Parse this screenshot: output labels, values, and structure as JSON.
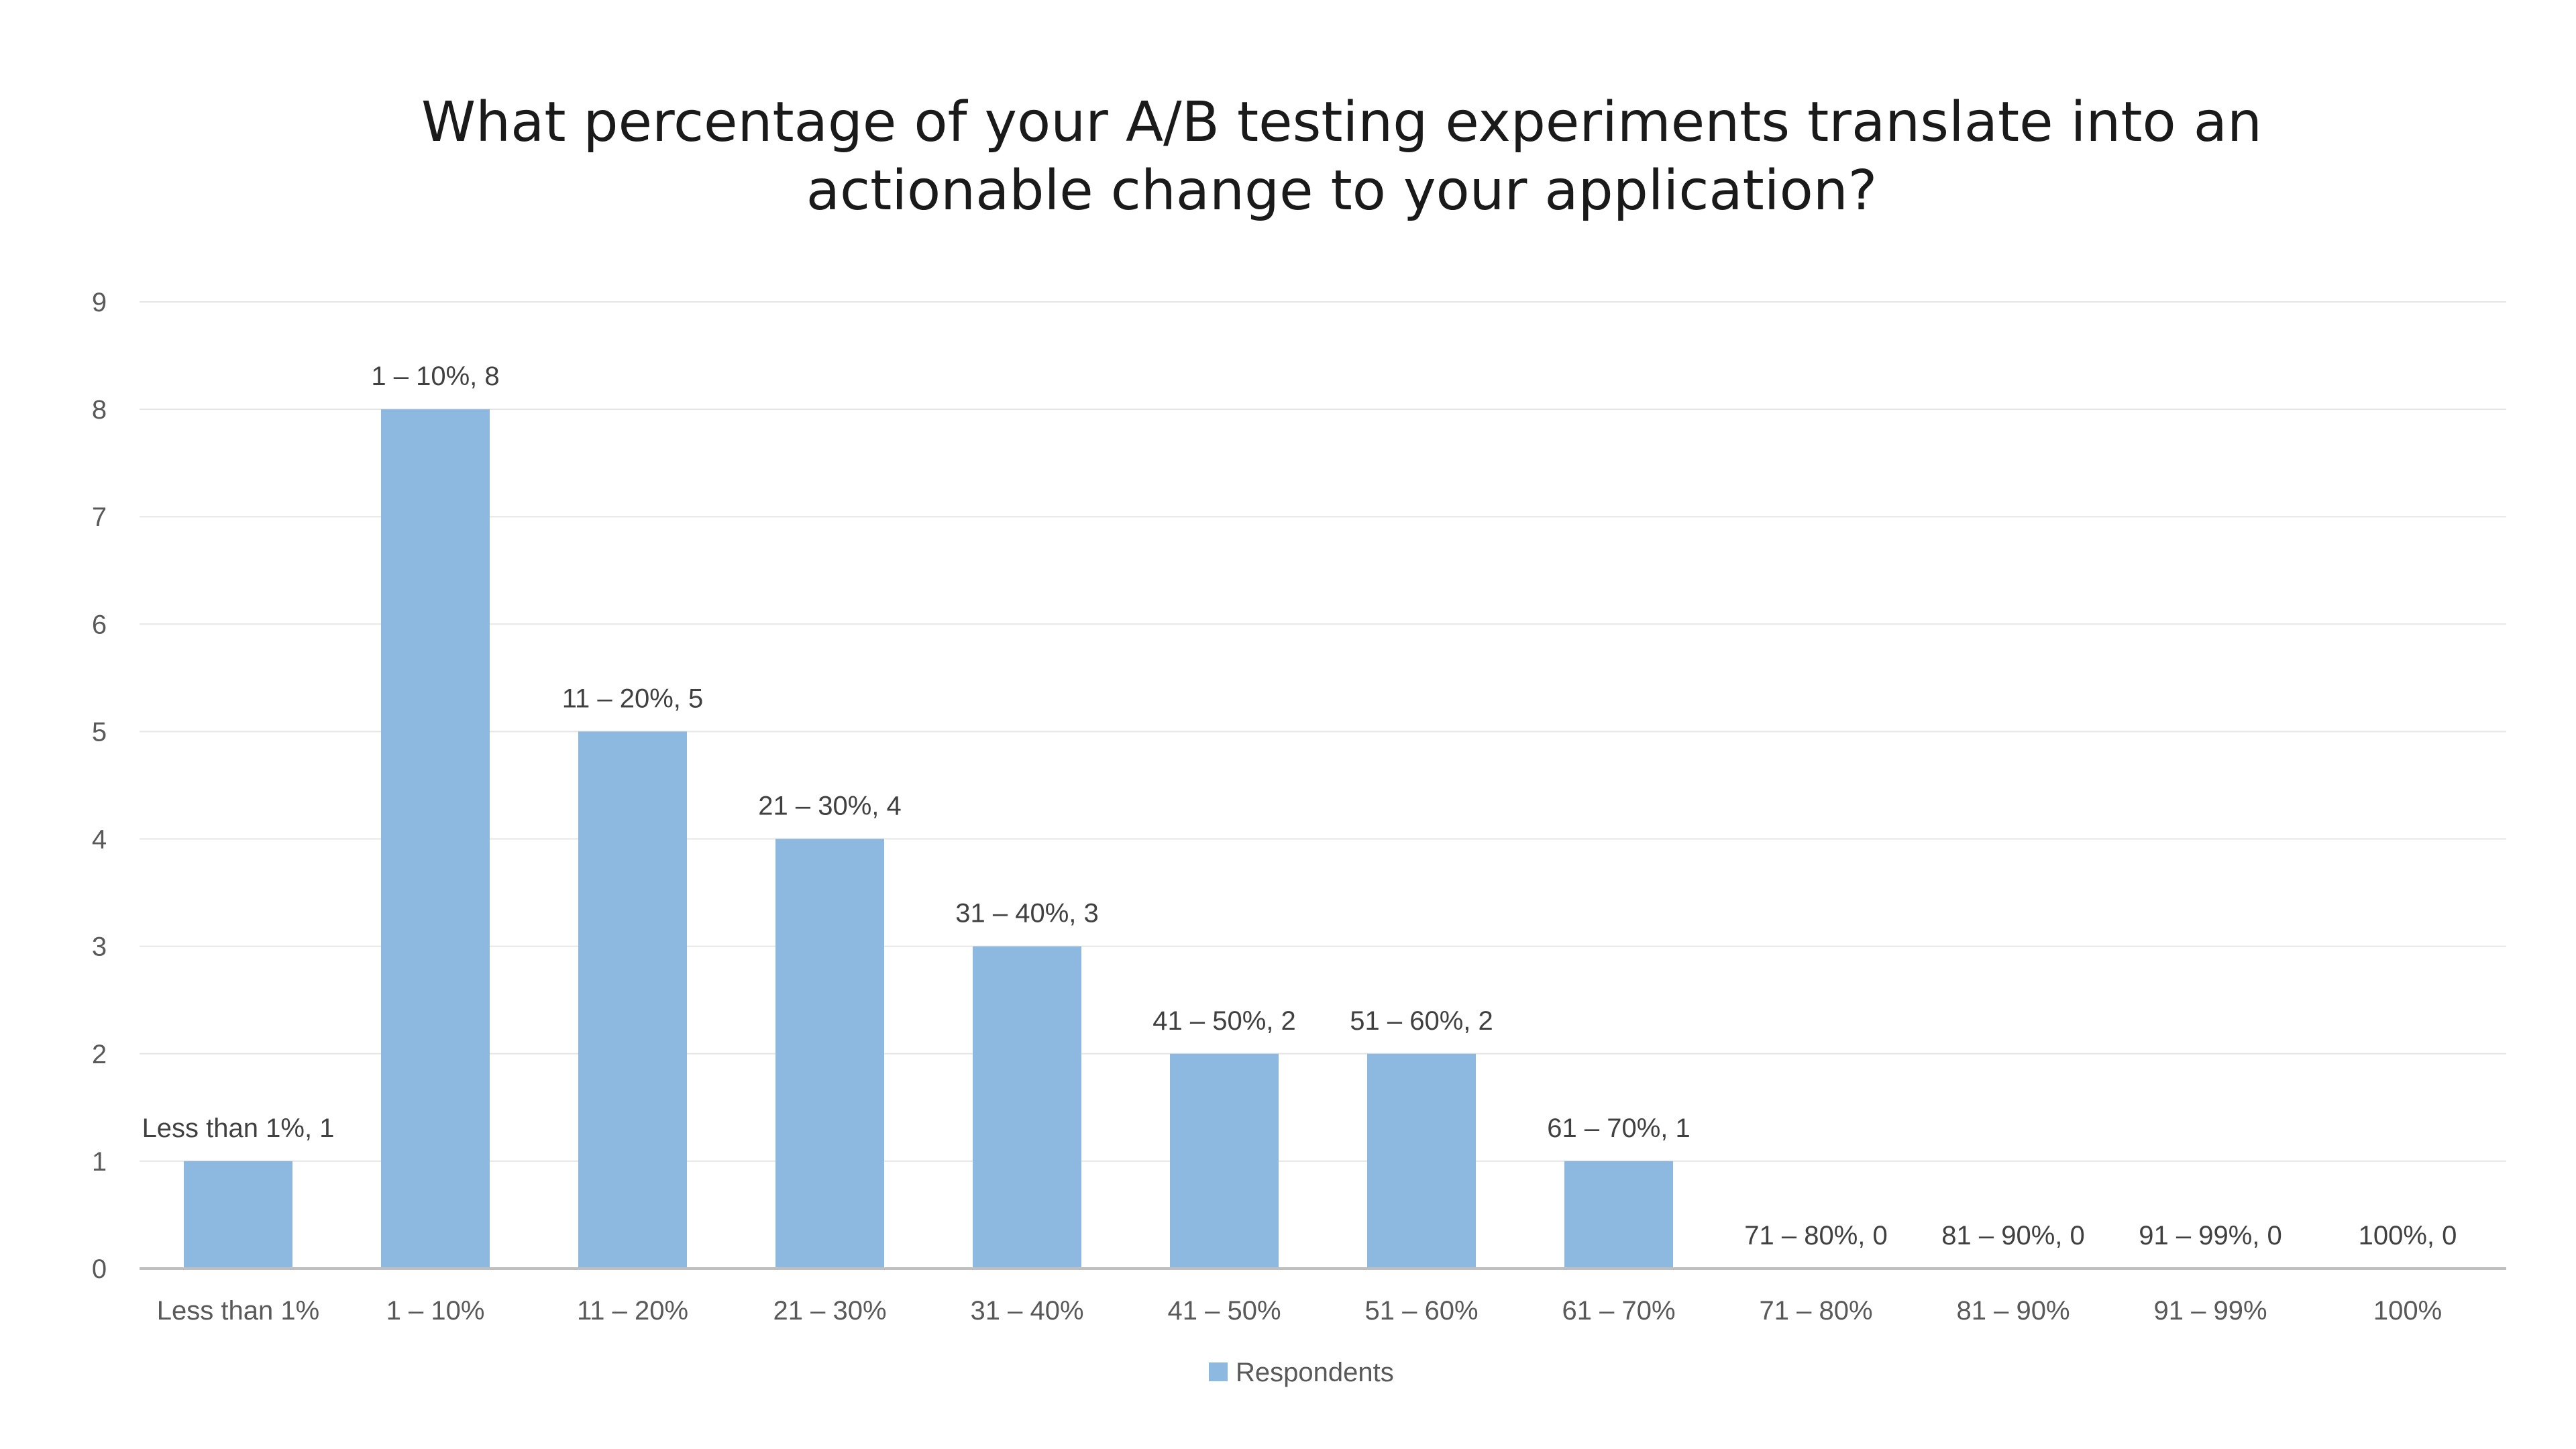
{
  "chart_data": {
    "type": "bar",
    "title_lines": [
      "What percentage of your A/B testing experiments translate into an",
      "actionable change to your application?"
    ],
    "categories": [
      "Less than 1%",
      "1 – 10%",
      "11 – 20%",
      "21 – 30%",
      "31 – 40%",
      "41 – 50%",
      "51 – 60%",
      "61 – 70%",
      "71 – 80%",
      "81 – 90%",
      "91 – 99%",
      "100%"
    ],
    "series": [
      {
        "name": "Respondents",
        "values": [
          1,
          8,
          5,
          4,
          3,
          2,
          2,
          1,
          0,
          0,
          0,
          0
        ],
        "color": "#8db8e0"
      }
    ],
    "data_labels": [
      "Less than 1%, 1",
      "1 – 10%, 8",
      "11 – 20%, 5",
      "21 – 30%, 4",
      "31 – 40%, 3",
      "41 – 50%, 2",
      "51 – 60%, 2",
      "61 – 70%, 1",
      "71 – 80%, 0",
      "81 – 90%, 0",
      "91 – 99%, 0",
      "100%, 0"
    ],
    "ylim": [
      0,
      9
    ],
    "yticks": [
      "0",
      "1",
      "2",
      "3",
      "4",
      "5",
      "6",
      "7",
      "8",
      "9"
    ],
    "grid": true,
    "legend_position": "bottom-center",
    "colors": {
      "gridline": "#e6e6e6",
      "axis": "#bfbfbf"
    }
  }
}
